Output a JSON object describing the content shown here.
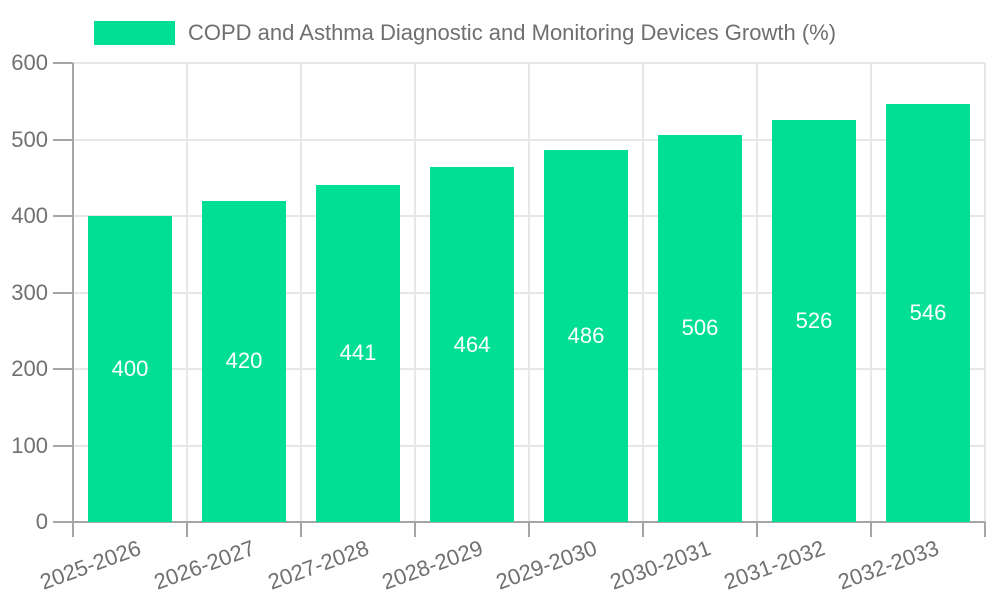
{
  "legend": {
    "label": "COPD and Asthma Diagnostic and Monitoring Devices Growth (%)"
  },
  "chart_data": {
    "type": "bar",
    "title": "COPD and Asthma Diagnostic and Monitoring Devices Growth (%)",
    "categories": [
      "2025-2026",
      "2026-2027",
      "2027-2028",
      "2028-2029",
      "2029-2030",
      "2030-2031",
      "2031-2032",
      "2032-2033"
    ],
    "values": [
      400,
      420,
      441,
      464,
      486,
      506,
      526,
      546
    ],
    "xlabel": "",
    "ylabel": "",
    "ylim": [
      0,
      600
    ],
    "yticks": [
      0,
      100,
      200,
      300,
      400,
      500,
      600
    ],
    "grid": true,
    "legend_position": "top",
    "bar_color": "#00df93",
    "value_label_color": "#ffffff",
    "axis_color": "#a6a6a6",
    "grid_color": "#e7e7e7",
    "tick_label_color": "#707070",
    "x_label_rotation_deg": -20
  }
}
